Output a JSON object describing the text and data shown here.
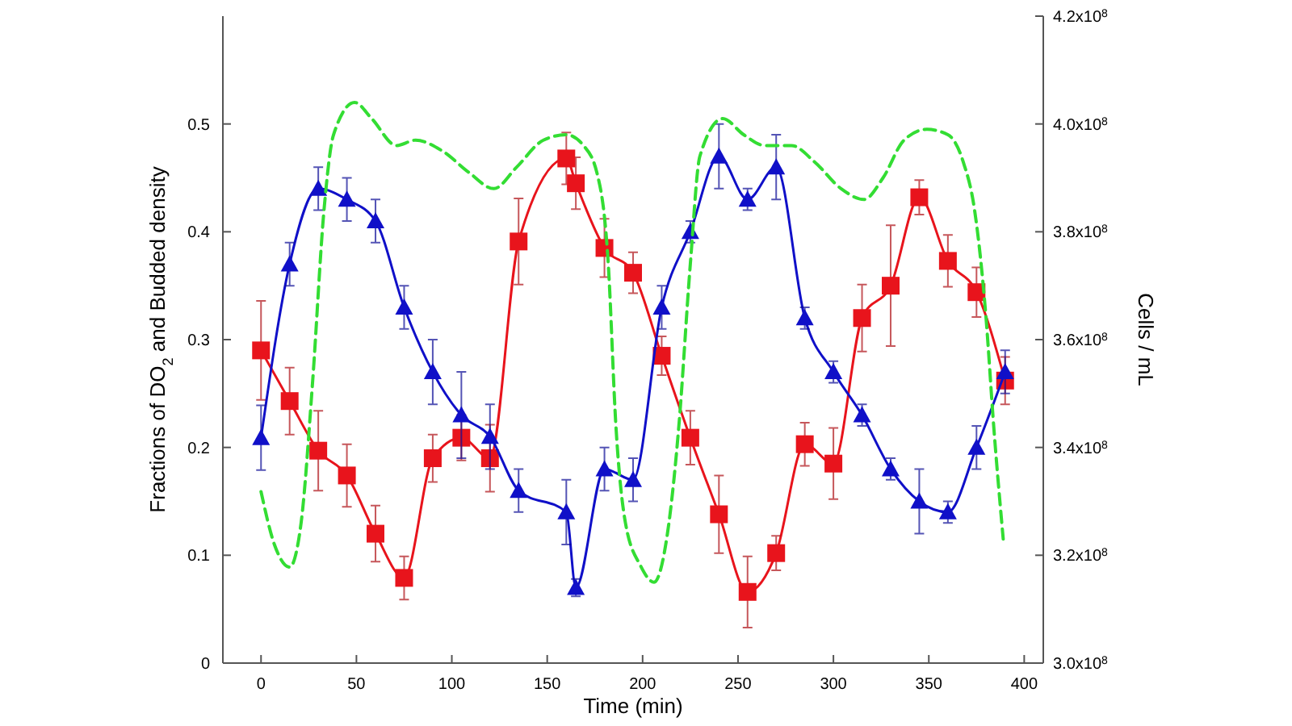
{
  "chart_data": {
    "type": "line",
    "xlabel": "Time (min)",
    "ylabel": "Fractions of DO$_{2}$ and Budded density",
    "y2label": "Cells / mL",
    "xlim": [
      -20,
      410
    ],
    "xticks": [
      0,
      50,
      100,
      150,
      200,
      250,
      300,
      350,
      400
    ],
    "ylim": [
      0,
      0.6
    ],
    "yticks": [
      0,
      0.1,
      0.2,
      0.3,
      0.4,
      0.5
    ],
    "y2lim": [
      300000000,
      420000000
    ],
    "y2ticks": [
      {
        "value": 300000000,
        "label": "3.0x10$^{8}$"
      },
      {
        "value": 320000000,
        "label": "3.2x10$^{8}$"
      },
      {
        "value": 340000000,
        "label": "3.4x10$^{8}$"
      },
      {
        "value": 360000000,
        "label": "3.6x10$^{8}$"
      },
      {
        "value": 380000000,
        "label": "3.8x10$^{8}$"
      },
      {
        "value": 400000000,
        "label": "4.0x10$^{8}$"
      },
      {
        "value": 420000000,
        "label": "4.2x10$^{8}$"
      }
    ],
    "grid": false,
    "series": [
      {
        "color": "#e8141c",
        "marker": "square",
        "line_style": "solid",
        "x": [
          0,
          15,
          30,
          45,
          60,
          75,
          90,
          105,
          120,
          135,
          160,
          165,
          180,
          195,
          210,
          225,
          240,
          255,
          270,
          285,
          300,
          315,
          330,
          345,
          360,
          375,
          390
        ],
        "values": [
          0.29,
          0.243,
          0.197,
          0.174,
          0.12,
          0.079,
          0.19,
          0.209,
          0.19,
          0.391,
          0.468,
          0.445,
          0.385,
          0.362,
          0.285,
          0.209,
          0.138,
          0.066,
          0.102,
          0.203,
          0.185,
          0.32,
          0.35,
          0.432,
          0.373,
          0.344,
          0.262
        ],
        "errors": [
          0.046,
          0.031,
          0.037,
          0.029,
          0.026,
          0.02,
          0.022,
          0.021,
          0.031,
          0.04,
          0.024,
          0.024,
          0.027,
          0.019,
          0.018,
          0.025,
          0.036,
          0.033,
          0.016,
          0.02,
          0.033,
          0.031,
          0.056,
          0.016,
          0.024,
          0.023,
          0.022
        ]
      },
      {
        "color": "#1010c8",
        "marker": "triangle",
        "line_style": "solid",
        "x": [
          0,
          15,
          30,
          45,
          60,
          75,
          90,
          105,
          120,
          135,
          160,
          165,
          180,
          195,
          210,
          225,
          240,
          255,
          270,
          285,
          300,
          315,
          330,
          345,
          360,
          375,
          390
        ],
        "values": [
          0.209,
          0.37,
          0.44,
          0.43,
          0.41,
          0.33,
          0.27,
          0.23,
          0.21,
          0.16,
          0.14,
          0.07,
          0.18,
          0.17,
          0.33,
          0.4,
          0.47,
          0.43,
          0.46,
          0.32,
          0.27,
          0.23,
          0.18,
          0.15,
          0.14,
          0.2,
          0.27
        ],
        "errors": [
          0.03,
          0.02,
          0.02,
          0.02,
          0.02,
          0.02,
          0.03,
          0.04,
          0.03,
          0.02,
          0.03,
          0.008,
          0.02,
          0.02,
          0.02,
          0.01,
          0.03,
          0.01,
          0.03,
          0.01,
          0.01,
          0.01,
          0.01,
          0.03,
          0.01,
          0.02,
          0.02
        ]
      },
      {
        "color": "#33dd33",
        "marker": "none",
        "line_style": "dashed",
        "axis": "y2",
        "x": [
          0,
          7,
          15,
          21,
          27,
          33,
          38,
          49,
          58,
          71,
          81,
          95,
          109,
          122,
          134,
          148,
          160,
          169,
          176,
          182,
          186,
          191,
          199,
          206,
          213,
          219,
          225,
          230,
          242,
          253,
          264,
          278,
          290,
          304,
          316,
          326,
          337,
          349,
          360,
          368,
          374,
          380,
          384,
          389
        ],
        "values": [
          331800000,
          322000000,
          317800000,
          326000000,
          352000000,
          384000000,
          398000000,
          404000000,
          401000000,
          396000000,
          397000000,
          395000000,
          391000000,
          388000000,
          392000000,
          397000000,
          398000000,
          396000000,
          391000000,
          374000000,
          344000000,
          326000000,
          318000000,
          315000000,
          324000000,
          344000000,
          374000000,
          394000000,
          401000000,
          398000000,
          396000000,
          396000000,
          393000000,
          388000000,
          386000000,
          390000000,
          397000000,
          399000000,
          398000000,
          393000000,
          384000000,
          364000000,
          344000000,
          323000000
        ]
      }
    ]
  }
}
